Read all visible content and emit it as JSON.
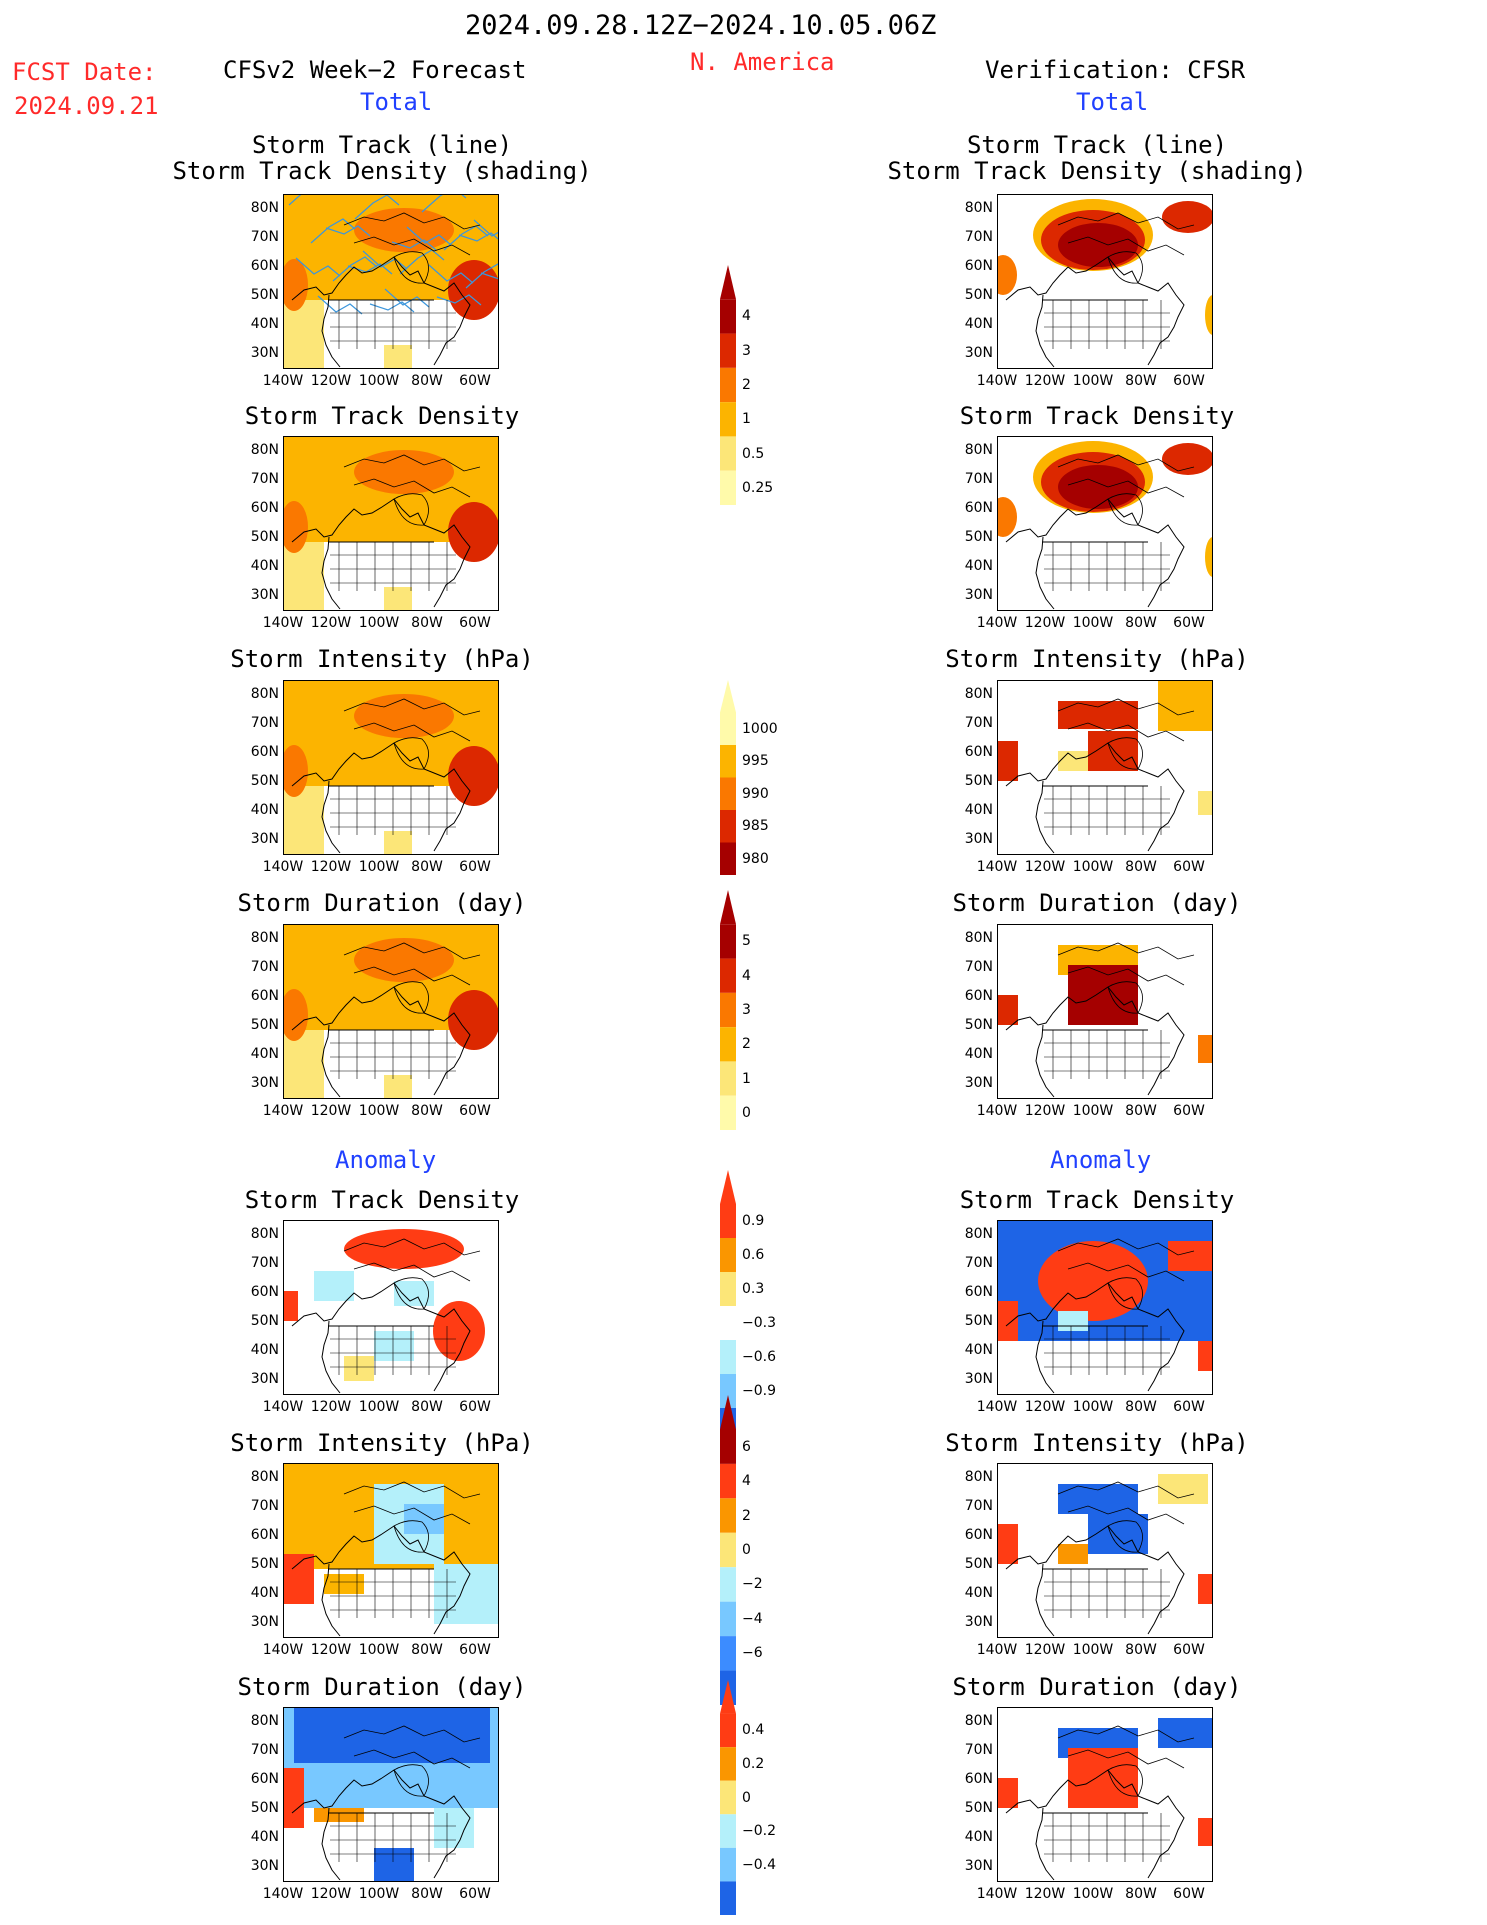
{
  "header": {
    "period": "2024.09.28.12Z−2024.10.05.06Z",
    "region": "N. America",
    "fcst_label": "FCST Date:",
    "fcst_date": "2024.09.21",
    "left_title": "CFSv2 Week−2 Forecast",
    "right_title": "Verification: CFSR",
    "total_label": "Total",
    "anomaly_label": "Anomaly"
  },
  "panels": {
    "track_line_1": "Storm Track (line)",
    "track_line_2": "Storm Track Density (shading)",
    "density": "Storm Track Density",
    "intensity": "Storm Intensity (hPa)",
    "duration": "Storm Duration (day)"
  },
  "axes": {
    "lat": [
      "80N",
      "70N",
      "60N",
      "50N",
      "40N",
      "30N"
    ],
    "lon": [
      "140W",
      "120W",
      "100W",
      "80W",
      "60W"
    ]
  },
  "colorbars": {
    "density": {
      "labels": [
        "4",
        "3",
        "2",
        "1",
        "0.5",
        "0.25"
      ],
      "colors": [
        "#a50000",
        "#dc2800",
        "#fa7800",
        "#fcb400",
        "#fce678",
        "#fffaaa"
      ]
    },
    "intensity": {
      "labels": [
        "1000",
        "995",
        "990",
        "985",
        "980"
      ],
      "colors": [
        "#fffaaa",
        "#fcb400",
        "#fa7800",
        "#dc2800",
        "#a50000"
      ]
    },
    "duration": {
      "labels": [
        "5",
        "4",
        "3",
        "2",
        "1",
        "0"
      ],
      "colors": [
        "#a50000",
        "#dc2800",
        "#fa7800",
        "#fcb400",
        "#fce678",
        "#fffaaa"
      ]
    },
    "anom_density": {
      "labels": [
        "0.9",
        "0.6",
        "0.3",
        "−0.3",
        "−0.6",
        "−0.9"
      ],
      "colors": [
        "#ff3c14",
        "#fa9600",
        "#fce678",
        "#ffffff",
        "#b4f0fa",
        "#78c8ff",
        "#1e64e6"
      ]
    },
    "anom_intensity": {
      "labels": [
        "6",
        "4",
        "2",
        "0",
        "−2",
        "−4",
        "−6"
      ],
      "colors": [
        "#a50000",
        "#ff3c14",
        "#fa9600",
        "#fce678",
        "#b4f0fa",
        "#78c8ff",
        "#3c8cff",
        "#1e64e6"
      ]
    },
    "anom_duration": {
      "labels": [
        "0.4",
        "0.2",
        "0",
        "−0.2",
        "−0.4"
      ],
      "colors": [
        "#ff3c14",
        "#fa9600",
        "#fce678",
        "#b4f0fa",
        "#78c8ff",
        "#1e64e6"
      ]
    }
  },
  "map_fields": {
    "fc_track": "orange-field-with-blue-tracks",
    "vf_track": "dark-red-polar-centers",
    "fc_density": "orange-field",
    "vf_density": "dark-red-polar-centers",
    "fc_intensity": "orange-field",
    "vf_intensity": "red-patches",
    "fc_duration": "orange-field",
    "vf_duration": "darkred-patch",
    "fc_anom_density": "mixed-red-blue",
    "vf_anom_density": "red-center-blue-ring",
    "fc_anom_intensity": "orange-blue",
    "vf_anom_intensity": "blue-patches",
    "fc_anom_duration": "blue-field",
    "vf_anom_duration": "red-blue"
  }
}
